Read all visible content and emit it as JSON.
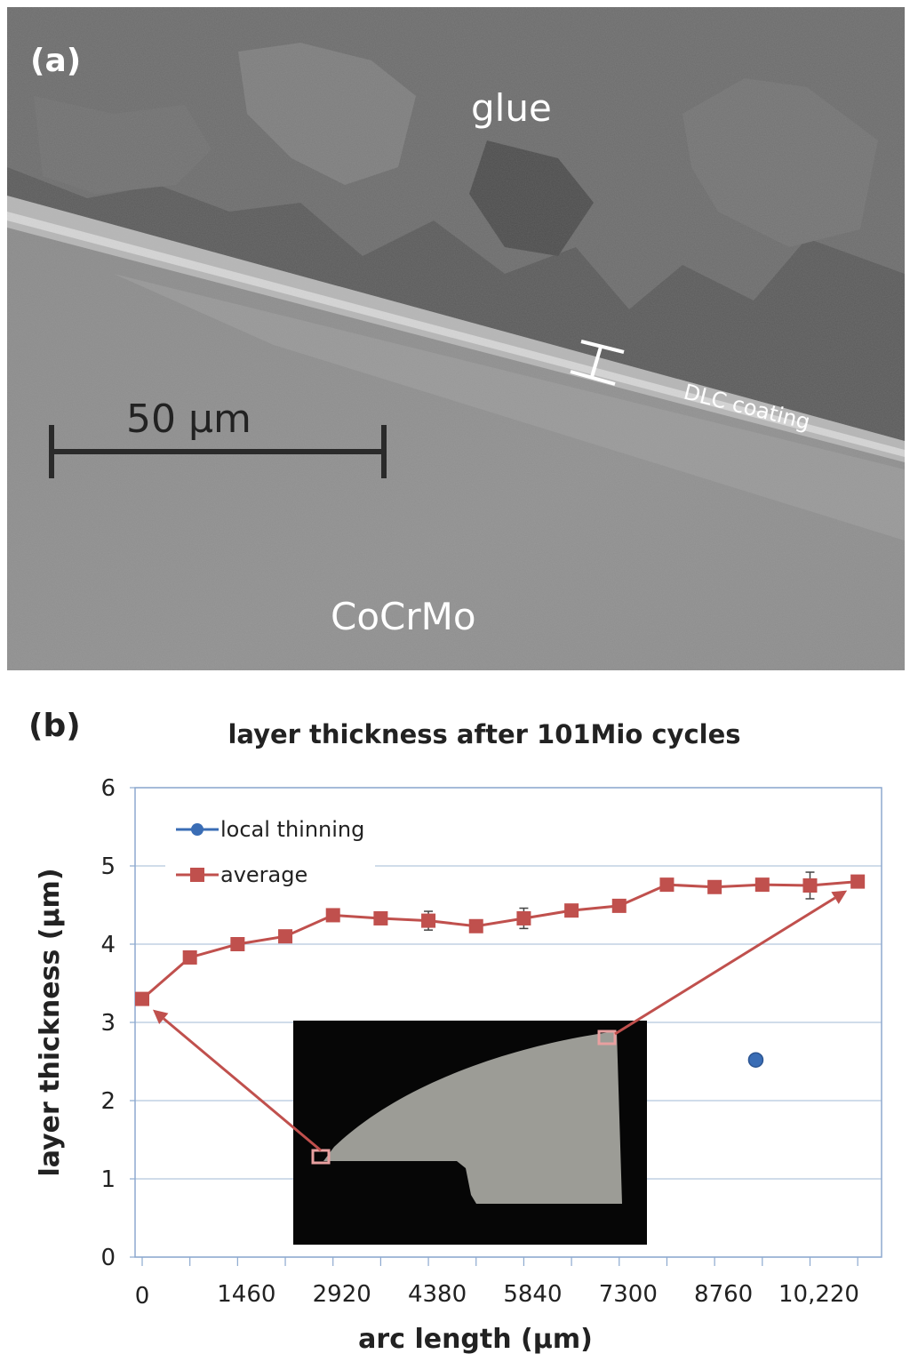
{
  "panel_a": {
    "label": "(a)",
    "region_labels": {
      "top": "glue",
      "bottom": "CoCrMo",
      "layer": "DLC coating"
    },
    "scale_bar": "50 µm"
  },
  "chart_data": {
    "type": "line",
    "panel_label": "(b)",
    "title": "layer thickness after 101Mio cycles",
    "xlabel": "arc length (µm)",
    "ylabel": "layer thickness (µm)",
    "ylim": [
      0,
      6
    ],
    "xlim": [
      0,
      11315
    ],
    "x_ticks": [
      0,
      1460,
      2920,
      4380,
      5840,
      7300,
      8760,
      10220
    ],
    "x_tick_labels": [
      "0",
      "1460",
      "2920",
      "4380",
      "5840",
      "7300",
      "8760",
      "10,220"
    ],
    "y_ticks": [
      0,
      1,
      2,
      3,
      4,
      5,
      6
    ],
    "grid": true,
    "legend_position": "top-left",
    "series": [
      {
        "name": "local thinning",
        "color": "#3a6db5",
        "marker": "circle",
        "x": [
          9390
        ],
        "y": [
          2.52
        ]
      },
      {
        "name": "average",
        "color": "#c0504d",
        "marker": "square",
        "x": [
          0,
          730,
          1460,
          2190,
          2920,
          3650,
          4380,
          5110,
          5840,
          6570,
          7300,
          8030,
          8760,
          9490,
          10220,
          10950
        ],
        "y": [
          3.3,
          3.83,
          4.0,
          4.1,
          4.37,
          4.33,
          4.3,
          4.23,
          4.33,
          4.43,
          4.49,
          4.76,
          4.73,
          4.76,
          4.75,
          4.8
        ],
        "error": [
          0,
          0,
          0.06,
          0,
          0.07,
          0,
          0.12,
          0,
          0.13,
          0,
          0,
          0,
          0,
          0,
          0.17,
          0
        ]
      }
    ]
  }
}
